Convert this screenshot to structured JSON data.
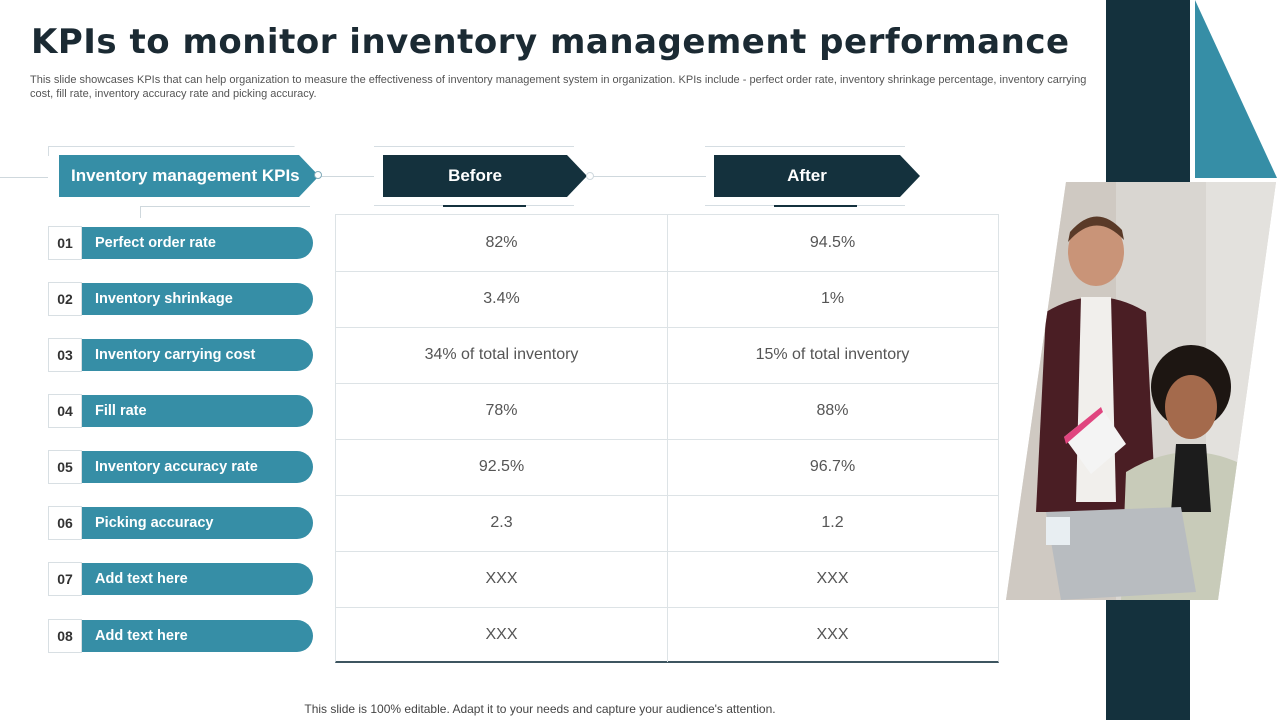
{
  "slide": {
    "title": "KPIs to monitor inventory management performance",
    "subtitle": "This slide showcases KPIs that can help organization to measure the effectiveness of inventory management system in organization. KPIs include - perfect order rate, inventory shrinkage percentage, inventory carrying cost, fill rate, inventory accuracy rate and picking accuracy.",
    "footer": "This slide is 100% editable. Adapt it to your needs and capture your audience's attention."
  },
  "headers": {
    "kpi": "Inventory management KPIs",
    "before": "Before",
    "after": "After"
  },
  "kpis": [
    {
      "num": "01",
      "label": "Perfect order rate",
      "before": "82%",
      "after": "94.5%"
    },
    {
      "num": "02",
      "label": "Inventory shrinkage",
      "before": "3.4%",
      "after": "1%"
    },
    {
      "num": "03",
      "label": "Inventory carrying cost",
      "before": "34% of total inventory",
      "after": "15% of total inventory"
    },
    {
      "num": "04",
      "label": "Fill rate",
      "before": "78%",
      "after": "88%"
    },
    {
      "num": "05",
      "label": "Inventory accuracy rate",
      "before": "92.5%",
      "after": "96.7%"
    },
    {
      "num": "06",
      "label": "Picking accuracy",
      "before": "2.3",
      "after": "1.2"
    },
    {
      "num": "07",
      "label": "Add text here",
      "before": "XXX",
      "after": "XXX"
    },
    {
      "num": "08",
      "label": "Add text here",
      "before": "XXX",
      "after": "XXX"
    }
  ],
  "colors": {
    "teal": "#368ea6",
    "navy": "#14313d"
  }
}
